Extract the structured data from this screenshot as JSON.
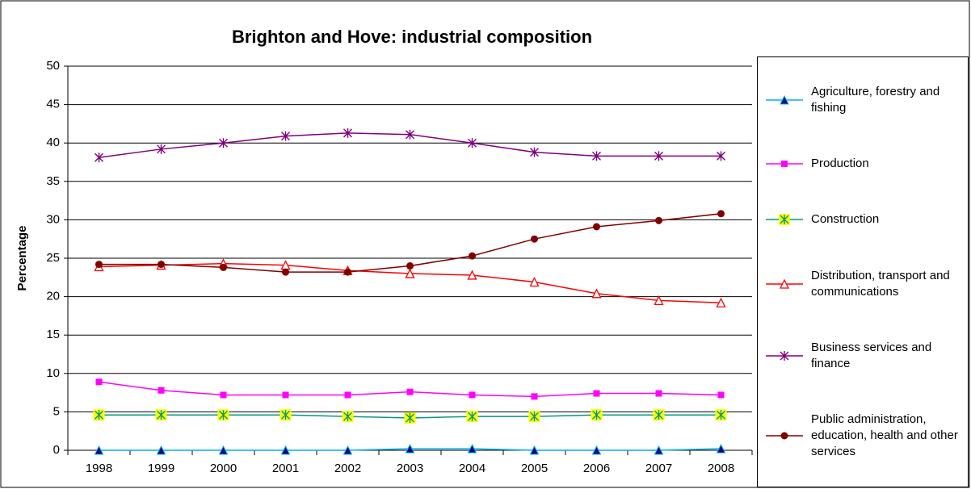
{
  "chart_data": {
    "type": "line",
    "title": "Brighton and Hove: industrial composition",
    "y_label": "Percentage",
    "categories": [
      "1998",
      "1999",
      "2000",
      "2001",
      "2002",
      "2003",
      "2004",
      "2005",
      "2006",
      "2007",
      "2008"
    ],
    "ylim": [
      0,
      50
    ],
    "yticks": [
      0,
      5,
      10,
      15,
      20,
      25,
      30,
      35,
      40,
      45,
      50
    ],
    "grid": true,
    "legend": "right",
    "series": [
      {
        "name": "Agriculture, forestry and fishing",
        "color": "#00b0f0",
        "marker": "triangle",
        "marker_color": "#000080",
        "values": [
          0,
          0,
          0,
          0,
          0,
          0.2,
          0.2,
          0,
          0,
          0,
          0.2
        ]
      },
      {
        "name": "Production",
        "color": "#ff00ff",
        "marker": "square",
        "marker_color": "#ff00ff",
        "values": [
          8.9,
          7.8,
          7.2,
          7.2,
          7.2,
          7.6,
          7.2,
          7.0,
          7.4,
          7.4,
          7.2
        ]
      },
      {
        "name": "Construction",
        "color": "#009980",
        "marker": "star-box",
        "marker_color": "#ffff00",
        "values": [
          4.6,
          4.6,
          4.6,
          4.6,
          4.4,
          4.2,
          4.4,
          4.4,
          4.6,
          4.6,
          4.6
        ]
      },
      {
        "name": "Distribution, transport and communications",
        "color": "#ff0000",
        "marker": "open-triangle",
        "marker_color": "#ff0000",
        "values": [
          23.9,
          24.1,
          24.3,
          24.1,
          23.4,
          23.0,
          22.8,
          21.9,
          20.4,
          19.5,
          19.2
        ]
      },
      {
        "name": "Business services and finance",
        "color": "#800080",
        "marker": "asterisk",
        "marker_color": "#800080",
        "values": [
          38.1,
          39.2,
          40.0,
          40.9,
          41.3,
          41.1,
          40.0,
          38.8,
          38.3,
          38.3,
          38.3
        ]
      },
      {
        "name": "Public administration, education, health and other services",
        "color": "#800000",
        "marker": "circle",
        "marker_color": "#800000",
        "values": [
          24.2,
          24.2,
          23.8,
          23.2,
          23.2,
          24.0,
          25.3,
          27.5,
          29.1,
          29.9,
          30.8
        ]
      }
    ]
  }
}
